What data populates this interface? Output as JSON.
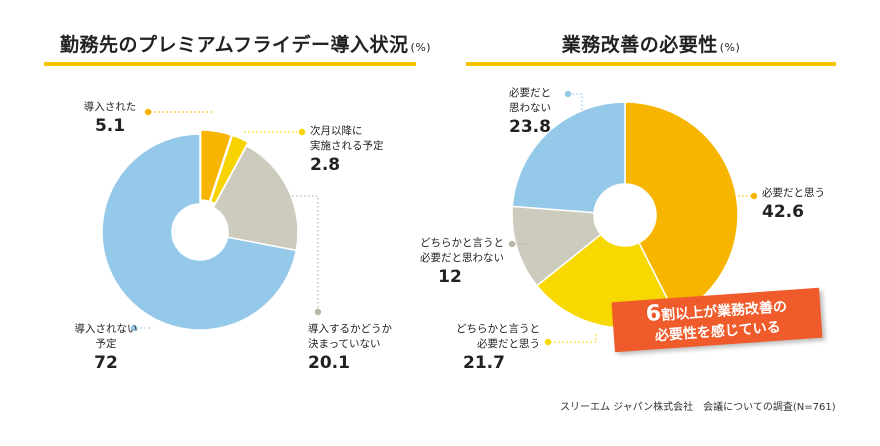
{
  "colors": {
    "accent": "#f5c400",
    "callout_bg": "#ef5b2a",
    "grid": "#c9c9c9"
  },
  "chart_data": [
    {
      "type": "pie",
      "title": "勤務先のプレミアムフライデー導入状況",
      "unit": "(%)",
      "slices": [
        {
          "label": "導入された",
          "value": 5.1,
          "color": "#f7b500"
        },
        {
          "label": "次月以降に実施される予定",
          "label_lines": [
            "次月以降に",
            "実施される予定"
          ],
          "value": 2.8,
          "color": "#f7d400"
        },
        {
          "label": "導入するかどうか決まっていない",
          "label_lines": [
            "導入するかどうか",
            "決まっていない"
          ],
          "value": 20.1,
          "color": "#cdcbbd"
        },
        {
          "label": "導入されない予定",
          "label_lines": [
            "導入されない",
            "予定"
          ],
          "value": 72.0,
          "color": "#94c9ea"
        }
      ]
    },
    {
      "type": "pie",
      "title": "業務改善の必要性",
      "unit": "(%)",
      "slices": [
        {
          "label": "必要だと思う",
          "value": 42.6,
          "color": "#f7b500"
        },
        {
          "label": "どちらかと言うと必要だと思う",
          "label_lines": [
            "どちらかと言うと",
            "必要だと思う"
          ],
          "value": 21.7,
          "color": "#f7d800"
        },
        {
          "label": "どちらかと言うと必要だと思わない",
          "label_lines": [
            "どちらかと言うと",
            "必要だと思わない"
          ],
          "value": 12.0,
          "color": "#cdcbbd"
        },
        {
          "label": "必要だと思わない",
          "label_lines": [
            "必要だと",
            "思わない"
          ],
          "value": 23.8,
          "color": "#94c9ea"
        }
      ]
    }
  ],
  "callout": {
    "number": "6",
    "line1": "割以上が業務改善の",
    "line2": "必要性を感じている"
  },
  "source": "スリーエム ジャパン株式会社　会議についての調査(N=761)"
}
